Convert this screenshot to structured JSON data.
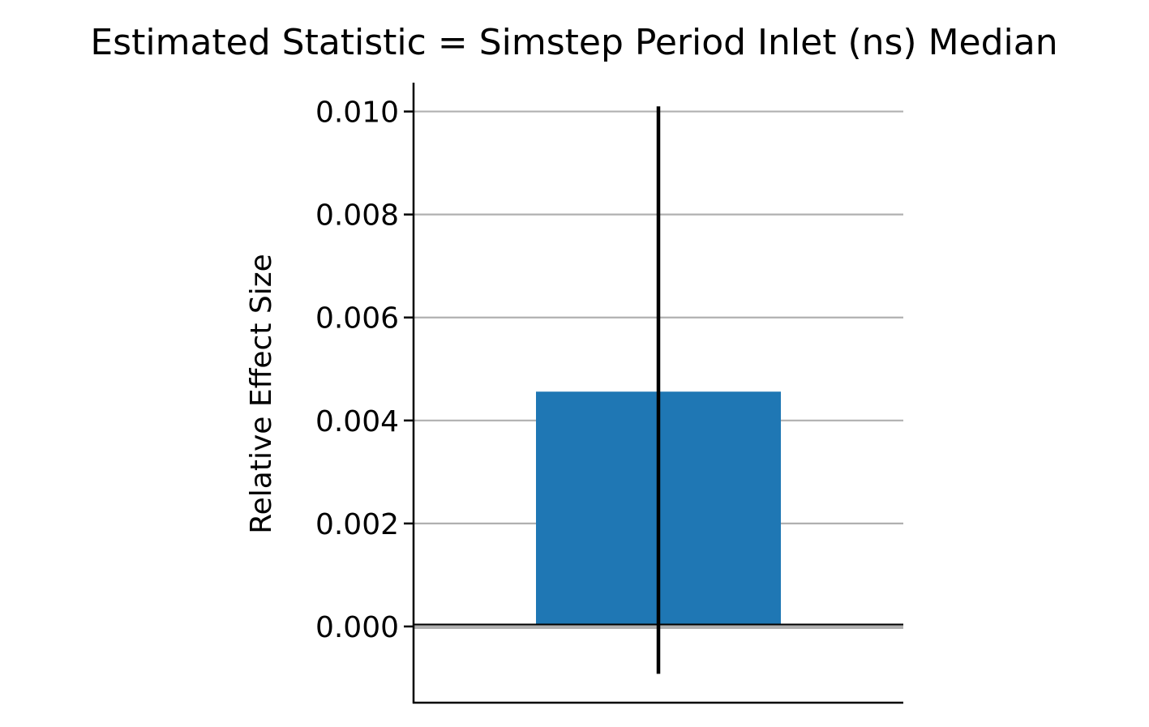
{
  "chart_data": {
    "type": "bar",
    "title": "Estimated Statistic = Simstep Period Inlet (ns) Median",
    "xlabel": "",
    "ylabel": "Relative Effect Size",
    "categories": [
      ""
    ],
    "values": [
      0.00456
    ],
    "error_bars": [
      {
        "low": -0.00092,
        "high": 0.0101
      }
    ],
    "ylim": [
      -0.00148,
      0.01056
    ],
    "yticks": [
      0.0,
      0.002,
      0.004,
      0.006,
      0.008,
      0.01
    ],
    "ytick_labels": [
      "0.000",
      "0.002",
      "0.004",
      "0.006",
      "0.008",
      "0.010"
    ],
    "grid": "y",
    "zero_line": 0,
    "colors": {
      "bar": "#1f77b4",
      "error_bar": "#000000",
      "grid": "#b0b0b0",
      "axis": "#000000"
    }
  }
}
